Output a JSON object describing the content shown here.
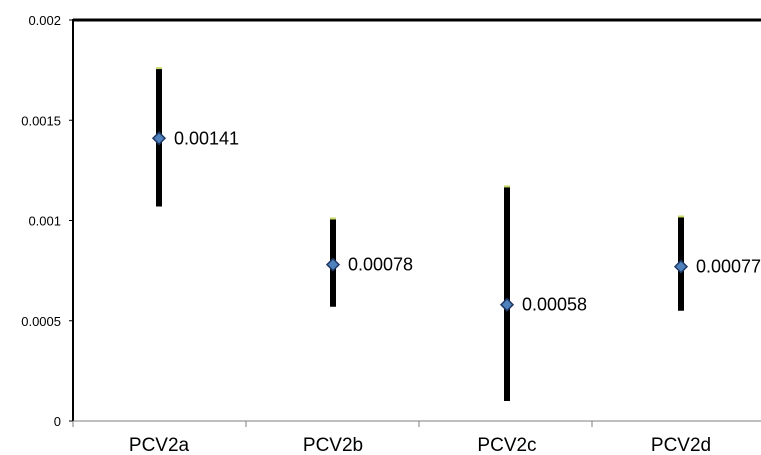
{
  "chart_data": {
    "type": "scatter",
    "title": "",
    "xlabel": "",
    "ylabel": "",
    "ylim": [
      0,
      0.002
    ],
    "yticks": [
      "0",
      "0.0005",
      "0.001",
      "0.0015",
      "0.002"
    ],
    "categories": [
      "PCV2a",
      "PCV2b",
      "PCV2c",
      "PCV2d"
    ],
    "values": [
      0.00141,
      0.00078,
      0.00058,
      0.00077
    ],
    "data_labels": [
      "0.00141",
      "0.00078",
      "0.00058",
      "0.00077"
    ],
    "error_low": [
      0.00107,
      0.00057,
      0.0001,
      0.00055
    ],
    "error_high": [
      0.00176,
      0.00101,
      0.00117,
      0.00102
    ],
    "grid": false,
    "legend": "none",
    "colors": {
      "marker_fill": "#4f81bd",
      "marker_stroke": "#1f3864",
      "error_bar": "#000000",
      "error_cap": "#c9d96a",
      "axis": "#000000"
    }
  }
}
